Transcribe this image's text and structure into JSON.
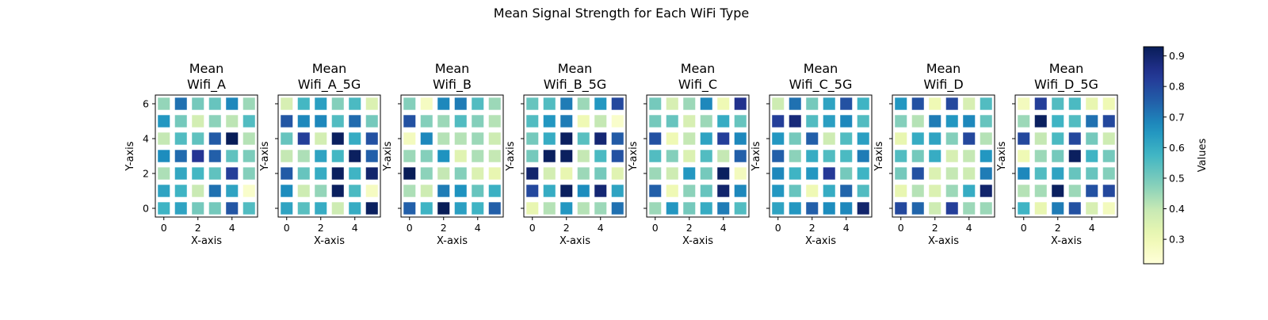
{
  "figure": {
    "suptitle": "Mean Signal Strength for Each WiFi Type",
    "colorbar_label": "Values"
  },
  "chart_data": {
    "type": "heatmap",
    "colormap": "YlGnBu",
    "vmin": 0.22,
    "vmax": 0.93,
    "colorbar_ticks": [
      0.3,
      0.4,
      0.5,
      0.6,
      0.7,
      0.8,
      0.9
    ],
    "colorbar_label": "Values",
    "panels": [
      {
        "title_line1": "Mean",
        "title_line2": "Wifi_A",
        "xlabel": "X-axis",
        "ylabel": "Y-axis",
        "x_ticks": [
          0,
          2,
          4
        ],
        "y_ticks": [
          0,
          2,
          4,
          6
        ],
        "grid": [
          [
            0.58,
            0.62,
            0.5,
            0.5,
            0.77,
            0.55
          ],
          [
            0.62,
            0.58,
            0.39,
            0.72,
            0.62,
            0.25
          ],
          [
            0.43,
            0.61,
            0.57,
            0.53,
            0.82,
            0.48
          ],
          [
            0.67,
            0.73,
            0.84,
            0.75,
            0.53,
            0.49
          ],
          [
            0.4,
            0.55,
            0.53,
            0.76,
            0.93,
            0.42
          ],
          [
            0.65,
            0.5,
            0.37,
            0.47,
            0.41,
            0.55
          ],
          [
            0.46,
            0.72,
            0.5,
            0.52,
            0.68,
            0.45
          ]
        ]
      },
      {
        "title_line1": "Mean",
        "title_line2": "Wifi_A_5G",
        "xlabel": "X-axis",
        "ylabel": "Y-axis",
        "x_ticks": [
          0,
          2,
          4
        ],
        "y_ticks": [
          0,
          2,
          4,
          6
        ],
        "grid": [
          [
            0.62,
            0.54,
            0.6,
            0.38,
            0.6,
            0.92
          ],
          [
            0.67,
            0.38,
            0.46,
            0.92,
            0.56,
            0.27
          ],
          [
            0.76,
            0.52,
            0.6,
            0.92,
            0.58,
            0.9
          ],
          [
            0.4,
            0.43,
            0.62,
            0.57,
            0.92,
            0.75
          ],
          [
            0.52,
            0.82,
            0.37,
            0.92,
            0.6,
            0.78
          ],
          [
            0.77,
            0.68,
            0.68,
            0.55,
            0.73,
            0.5
          ],
          [
            0.36,
            0.57,
            0.63,
            0.48,
            0.56,
            0.35
          ]
        ]
      },
      {
        "title_line1": "Mean",
        "title_line2": "Wifi_B",
        "xlabel": "X-axis",
        "ylabel": "Y-axis",
        "x_ticks": [
          0,
          2,
          4
        ],
        "y_ticks": [
          0,
          2,
          4,
          6
        ],
        "grid": [
          [
            0.75,
            0.58,
            0.93,
            0.63,
            0.58,
            0.75
          ],
          [
            0.43,
            0.38,
            0.7,
            0.66,
            0.52,
            0.59
          ],
          [
            0.93,
            0.47,
            0.4,
            0.48,
            0.35,
            0.32
          ],
          [
            0.45,
            0.48,
            0.66,
            0.34,
            0.43,
            0.4
          ],
          [
            0.28,
            0.68,
            0.42,
            0.42,
            0.45,
            0.38
          ],
          [
            0.78,
            0.48,
            0.45,
            0.55,
            0.48,
            0.42
          ],
          [
            0.48,
            0.27,
            0.68,
            0.7,
            0.55,
            0.45
          ]
        ]
      },
      {
        "title_line1": "Mean",
        "title_line2": "Wifi_B_5G",
        "xlabel": "X-axis",
        "ylabel": "Y-axis",
        "x_ticks": [
          0,
          2,
          4
        ],
        "y_ticks": [
          0,
          2,
          4,
          6
        ],
        "grid": [
          [
            0.32,
            0.42,
            0.65,
            0.42,
            0.45,
            0.72
          ],
          [
            0.8,
            0.6,
            0.92,
            0.67,
            0.89,
            0.62
          ],
          [
            0.9,
            0.37,
            0.32,
            0.45,
            0.5,
            0.34
          ],
          [
            0.5,
            0.92,
            0.92,
            0.4,
            0.56,
            0.78
          ],
          [
            0.5,
            0.6,
            0.92,
            0.54,
            0.89,
            0.76
          ],
          [
            0.55,
            0.65,
            0.7,
            0.3,
            0.4,
            0.25
          ],
          [
            0.52,
            0.55,
            0.7,
            0.45,
            0.65,
            0.8
          ]
        ]
      },
      {
        "title_line1": "Mean",
        "title_line2": "Wifi_C",
        "xlabel": "X-axis",
        "ylabel": "Y-axis",
        "x_ticks": [
          0,
          2,
          4
        ],
        "y_ticks": [
          0,
          2,
          4,
          6
        ],
        "grid": [
          [
            0.45,
            0.65,
            0.5,
            0.6,
            0.7,
            0.55
          ],
          [
            0.75,
            0.3,
            0.47,
            0.52,
            0.9,
            0.68
          ],
          [
            0.45,
            0.38,
            0.65,
            0.5,
            0.92,
            0.28
          ],
          [
            0.55,
            0.48,
            0.35,
            0.55,
            0.4,
            0.75
          ],
          [
            0.78,
            0.3,
            0.4,
            0.62,
            0.82,
            0.68
          ],
          [
            0.5,
            0.52,
            0.36,
            0.45,
            0.6,
            0.52
          ],
          [
            0.5,
            0.36,
            0.45,
            0.68,
            0.3,
            0.85
          ]
        ]
      },
      {
        "title_line1": "Mean",
        "title_line2": "Wifi_C_5G",
        "xlabel": "X-axis",
        "ylabel": "Y-axis",
        "x_ticks": [
          0,
          2,
          4
        ],
        "y_ticks": [
          0,
          2,
          4,
          6
        ],
        "grid": [
          [
            0.62,
            0.65,
            0.75,
            0.67,
            0.68,
            0.9
          ],
          [
            0.65,
            0.52,
            0.3,
            0.6,
            0.74,
            0.55
          ],
          [
            0.68,
            0.58,
            0.65,
            0.83,
            0.5,
            0.58
          ],
          [
            0.75,
            0.47,
            0.6,
            0.55,
            0.56,
            0.7
          ],
          [
            0.65,
            0.5,
            0.75,
            0.38,
            0.55,
            0.63
          ],
          [
            0.82,
            0.88,
            0.55,
            0.63,
            0.68,
            0.55
          ],
          [
            0.38,
            0.72,
            0.5,
            0.62,
            0.78,
            0.58
          ]
        ]
      },
      {
        "title_line1": "Mean",
        "title_line2": "Wifi_D",
        "xlabel": "X-axis",
        "ylabel": "Y-axis",
        "x_ticks": [
          0,
          2,
          4
        ],
        "y_ticks": [
          0,
          2,
          4,
          6
        ],
        "grid": [
          [
            0.8,
            0.74,
            0.38,
            0.82,
            0.45,
            0.45
          ],
          [
            0.32,
            0.42,
            0.35,
            0.45,
            0.6,
            0.9
          ],
          [
            0.5,
            0.78,
            0.35,
            0.4,
            0.38,
            0.7
          ],
          [
            0.55,
            0.5,
            0.6,
            0.36,
            0.4,
            0.65
          ],
          [
            0.32,
            0.6,
            0.62,
            0.48,
            0.8,
            0.42
          ],
          [
            0.48,
            0.42,
            0.7,
            0.65,
            0.68,
            0.52
          ],
          [
            0.65,
            0.78,
            0.3,
            0.8,
            0.36,
            0.55
          ]
        ]
      },
      {
        "title_line1": "Mean",
        "title_line2": "Wifi_D_5G",
        "xlabel": "X-axis",
        "ylabel": "Y-axis",
        "x_ticks": [
          0,
          2,
          4
        ],
        "y_ticks": [
          0,
          2,
          4,
          6
        ],
        "grid": [
          [
            0.58,
            0.32,
            0.7,
            0.78,
            0.36,
            0.28
          ],
          [
            0.42,
            0.44,
            0.92,
            0.45,
            0.78,
            0.8
          ],
          [
            0.68,
            0.55,
            0.62,
            0.52,
            0.52,
            0.48
          ],
          [
            0.3,
            0.45,
            0.5,
            0.92,
            0.58,
            0.5
          ],
          [
            0.8,
            0.4,
            0.56,
            0.8,
            0.5,
            0.38
          ],
          [
            0.45,
            0.92,
            0.58,
            0.55,
            0.72,
            0.8
          ],
          [
            0.28,
            0.82,
            0.55,
            0.56,
            0.32,
            0.3
          ]
        ]
      }
    ]
  }
}
